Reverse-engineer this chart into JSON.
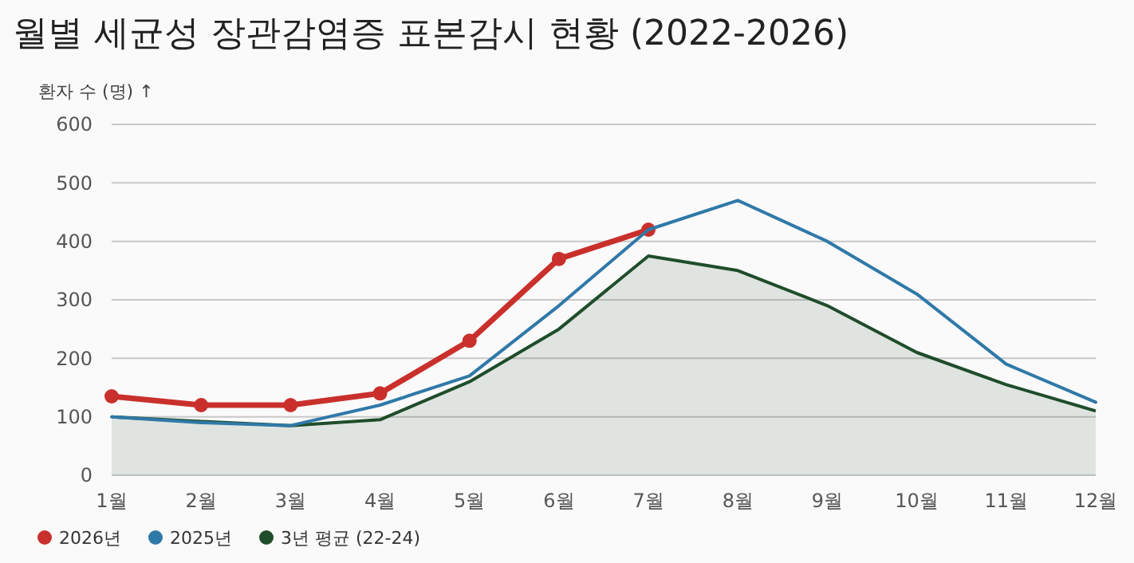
{
  "chart_data": {
    "type": "line",
    "title": "월별 세균성 장관감염증 표본감시 현황 (2022-2026)",
    "ylabel": "환자 수 (명) ↑",
    "categories": [
      "1월",
      "2월",
      "3월",
      "4월",
      "5월",
      "6월",
      "7월",
      "8월",
      "9월",
      "10월",
      "11월",
      "12월"
    ],
    "series": [
      {
        "name": "2026년",
        "color": "#c9302c",
        "marker": "circle",
        "values": [
          135,
          120,
          120,
          140,
          230,
          370,
          420,
          null,
          null,
          null,
          null,
          null
        ]
      },
      {
        "name": "2025년",
        "color": "#2f79a8",
        "marker": "none",
        "values": [
          100,
          90,
          85,
          120,
          170,
          290,
          420,
          470,
          400,
          310,
          190,
          125
        ]
      },
      {
        "name": "3년 평균 (22-24)",
        "type": "area",
        "color": "#1f4d2b",
        "marker": "none",
        "values": [
          100,
          92,
          85,
          95,
          160,
          250,
          375,
          350,
          290,
          210,
          155,
          110
        ]
      }
    ],
    "ylim": [
      0,
      600
    ],
    "yticks": [
      0,
      100,
      200,
      300,
      400,
      500,
      600
    ],
    "grid": "y",
    "legend": "bottom left"
  }
}
